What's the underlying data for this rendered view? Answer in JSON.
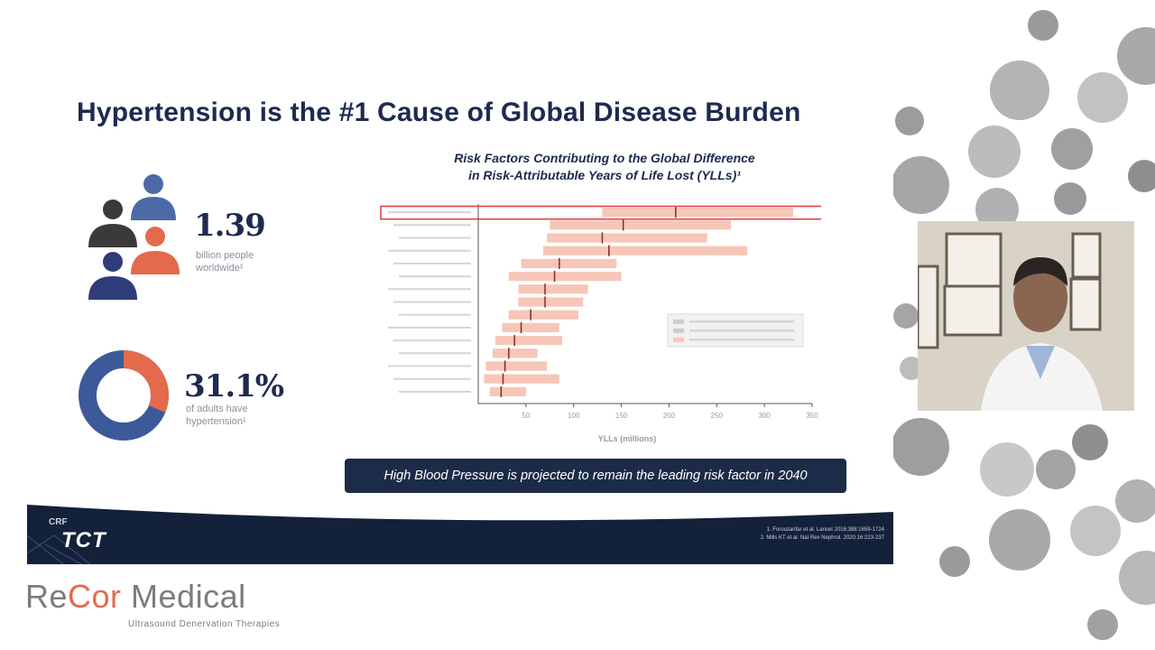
{
  "slide": {
    "title": "Hypertension is the #1 Cause of Global Disease Burden",
    "stat1": {
      "value": "1.39",
      "label_line1": "billion people",
      "label_line2": "worldwide¹"
    },
    "stat2": {
      "value": "31.1%",
      "label_line1": "of adults have",
      "label_line2": "hypertension¹",
      "percent": 31.1
    },
    "banner": "High Blood Pressure is projected to remain the leading risk factor in 2040",
    "references": [
      "1. Forouzanfar et al. Lancet 2016;388:1659-1724",
      "2. Mills KT et al. Nat Rev Nephrol. 2020;16:223-237"
    ]
  },
  "chart_data": {
    "type": "bar",
    "orientation": "horizontal",
    "title_line1": "Risk Factors Contributing to the Global Difference",
    "title_line2": "in Risk-Attributable Years of Life Lost (YLLs)¹",
    "xlabel": "YLLs (millions)",
    "xlim": [
      0,
      350
    ],
    "x_ticks": [
      "50",
      "100",
      "150",
      "200",
      "250",
      "300",
      "350"
    ],
    "x_tick_values": [
      50,
      100,
      150,
      200,
      250,
      300,
      350
    ],
    "bars": [
      {
        "low": 130,
        "high": 330,
        "mid": 207,
        "highlight": true
      },
      {
        "low": 75,
        "high": 265,
        "mid": 152
      },
      {
        "low": 72,
        "high": 240,
        "mid": 130
      },
      {
        "low": 68,
        "high": 282,
        "mid": 137
      },
      {
        "low": 45,
        "high": 145,
        "mid": 85
      },
      {
        "low": 32,
        "high": 150,
        "mid": 80
      },
      {
        "low": 42,
        "high": 115,
        "mid": 70
      },
      {
        "low": 42,
        "high": 110,
        "mid": 70
      },
      {
        "low": 32,
        "high": 105,
        "mid": 55
      },
      {
        "low": 25,
        "high": 85,
        "mid": 45
      },
      {
        "low": 18,
        "high": 88,
        "mid": 38
      },
      {
        "low": 15,
        "high": 62,
        "mid": 32
      },
      {
        "low": 8,
        "high": 72,
        "mid": 28
      },
      {
        "low": 6,
        "high": 85,
        "mid": 26
      },
      {
        "low": 12,
        "high": 50,
        "mid": 24
      }
    ],
    "legend_placement": "inside-right"
  },
  "colors": {
    "navy": "#1e2a4f",
    "accent": "#e46a4c",
    "donut_main": "#3c5a9a",
    "bar_fill": "#f6c6b8",
    "highlight": "#e0393c"
  },
  "brand": {
    "name_part1": "Re",
    "name_part2": "Cor",
    "name_part3": " Medical",
    "tagline": "Ultrasound Denervation Therapies",
    "crf": "CRF",
    "tct": "TCT"
  }
}
